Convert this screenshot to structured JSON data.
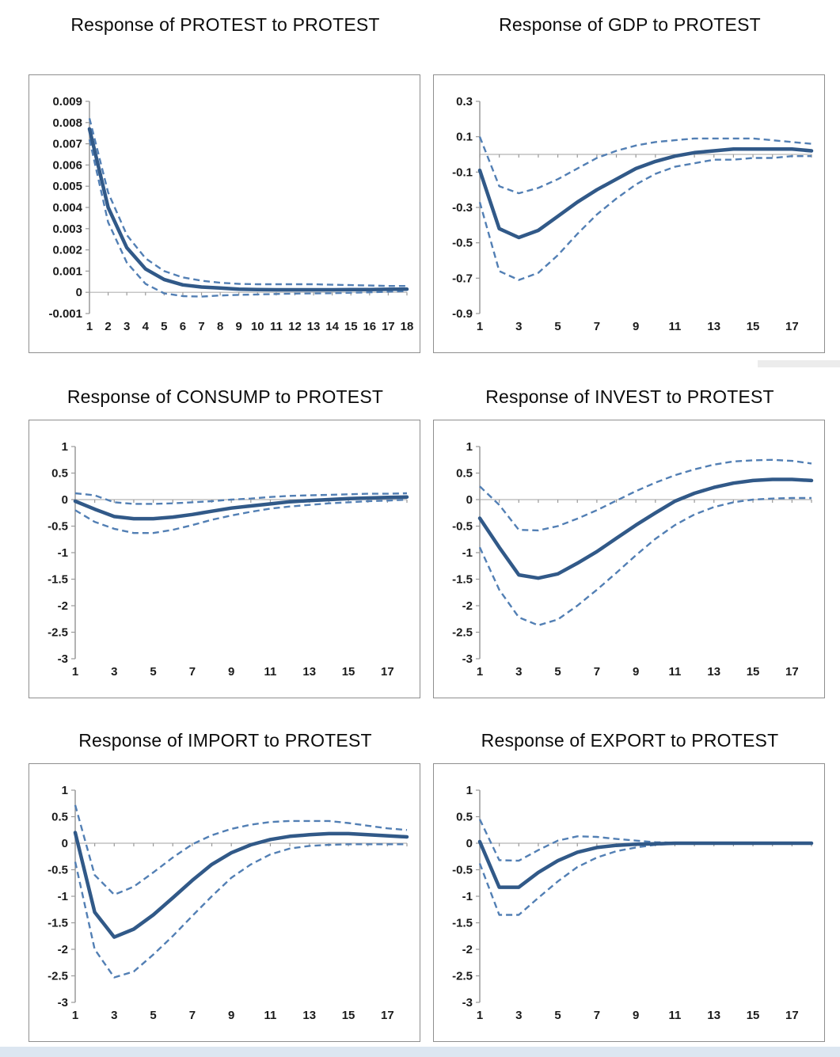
{
  "page": {
    "bottom_strip_color": "#dce6f1",
    "solid_line_color": "#315988",
    "dashed_line_color": "#527fb4",
    "axis_color": "#9a9a9a"
  },
  "chart_data": [
    {
      "type": "line",
      "title": "Response of PROTEST to PROTEST",
      "x": [
        1,
        2,
        3,
        4,
        5,
        6,
        7,
        8,
        9,
        10,
        11,
        12,
        13,
        14,
        15,
        16,
        17,
        18
      ],
      "xticks": [
        1,
        2,
        3,
        4,
        5,
        6,
        7,
        8,
        9,
        10,
        11,
        12,
        13,
        14,
        15,
        16,
        17,
        18
      ],
      "yticks": [
        "0.009",
        "0.008",
        "0.007",
        "0.006",
        "0.005",
        "0.004",
        "0.003",
        "0.002",
        "0.001",
        "0",
        "-0.001"
      ],
      "ylim": [
        -0.001,
        0.009
      ],
      "grid": "off",
      "legend": "none",
      "series": [
        {
          "name": "upper-band",
          "style": "dashed",
          "values": [
            0.0082,
            0.0047,
            0.0027,
            0.0016,
            0.001,
            0.0007,
            0.00055,
            0.00045,
            0.0004,
            0.00038,
            0.00038,
            0.00038,
            0.00038,
            0.00036,
            0.00034,
            0.00032,
            0.0003,
            0.0003
          ]
        },
        {
          "name": "response",
          "style": "solid",
          "values": [
            0.0077,
            0.004,
            0.0021,
            0.0011,
            0.0006,
            0.00035,
            0.00025,
            0.0002,
            0.00015,
            0.00013,
            0.00012,
            0.00012,
            0.00012,
            0.00012,
            0.00013,
            0.00013,
            0.00014,
            0.00015
          ]
        },
        {
          "name": "lower-band",
          "style": "dashed",
          "values": [
            0.0072,
            0.0033,
            0.0014,
            0.0004,
            -5e-05,
            -0.00018,
            -0.0002,
            -0.00015,
            -0.00012,
            -0.0001,
            -8e-05,
            -6e-05,
            -5e-05,
            -4e-05,
            -2e-05,
            0,
            3e-05,
            6e-05
          ]
        }
      ]
    },
    {
      "type": "line",
      "title": "Response of GDP to PROTEST",
      "x": [
        1,
        2,
        3,
        4,
        5,
        6,
        7,
        8,
        9,
        10,
        11,
        12,
        13,
        14,
        15,
        16,
        17,
        18
      ],
      "xticks": [
        1,
        3,
        5,
        7,
        9,
        11,
        13,
        15,
        17
      ],
      "yticks": [
        "0.3",
        "0.1",
        "-0.1",
        "-0.3",
        "-0.5",
        "-0.7",
        "-0.9"
      ],
      "ylim": [
        -0.9,
        0.3
      ],
      "grid": "off",
      "legend": "none",
      "series": [
        {
          "name": "upper-band",
          "style": "dashed",
          "values": [
            0.1,
            -0.18,
            -0.22,
            -0.19,
            -0.14,
            -0.08,
            -0.02,
            0.02,
            0.05,
            0.07,
            0.08,
            0.09,
            0.09,
            0.09,
            0.09,
            0.08,
            0.07,
            0.06
          ]
        },
        {
          "name": "response",
          "style": "solid",
          "values": [
            -0.09,
            -0.42,
            -0.47,
            -0.43,
            -0.35,
            -0.27,
            -0.2,
            -0.14,
            -0.08,
            -0.04,
            -0.01,
            0.01,
            0.02,
            0.03,
            0.03,
            0.03,
            0.03,
            0.02
          ]
        },
        {
          "name": "lower-band",
          "style": "dashed",
          "values": [
            -0.27,
            -0.66,
            -0.71,
            -0.67,
            -0.57,
            -0.45,
            -0.34,
            -0.25,
            -0.17,
            -0.11,
            -0.07,
            -0.05,
            -0.03,
            -0.03,
            -0.02,
            -0.02,
            -0.01,
            -0.01
          ]
        }
      ]
    },
    {
      "type": "line",
      "title": "Response of CONSUMP to PROTEST",
      "x": [
        1,
        2,
        3,
        4,
        5,
        6,
        7,
        8,
        9,
        10,
        11,
        12,
        13,
        14,
        15,
        16,
        17,
        18
      ],
      "xticks": [
        1,
        3,
        5,
        7,
        9,
        11,
        13,
        15,
        17
      ],
      "yticks": [
        "1",
        "0.5",
        "0",
        "-0.5",
        "-1",
        "-1.5",
        "-2",
        "-2.5",
        "-3"
      ],
      "ylim": [
        -3,
        1
      ],
      "grid": "off",
      "legend": "none",
      "series": [
        {
          "name": "upper-band",
          "style": "dashed",
          "values": [
            0.12,
            0.08,
            -0.05,
            -0.08,
            -0.08,
            -0.07,
            -0.05,
            -0.03,
            0,
            0.02,
            0.05,
            0.07,
            0.08,
            0.09,
            0.1,
            0.11,
            0.11,
            0.12
          ]
        },
        {
          "name": "response",
          "style": "solid",
          "values": [
            -0.03,
            -0.18,
            -0.32,
            -0.36,
            -0.36,
            -0.33,
            -0.28,
            -0.22,
            -0.16,
            -0.12,
            -0.08,
            -0.04,
            -0.02,
            0,
            0.02,
            0.03,
            0.04,
            0.05
          ]
        },
        {
          "name": "lower-band",
          "style": "dashed",
          "values": [
            -0.2,
            -0.42,
            -0.55,
            -0.63,
            -0.63,
            -0.57,
            -0.48,
            -0.38,
            -0.3,
            -0.23,
            -0.17,
            -0.13,
            -0.1,
            -0.07,
            -0.05,
            -0.03,
            -0.02,
            0
          ]
        }
      ]
    },
    {
      "type": "line",
      "title": "Response of INVEST to PROTEST",
      "x": [
        1,
        2,
        3,
        4,
        5,
        6,
        7,
        8,
        9,
        10,
        11,
        12,
        13,
        14,
        15,
        16,
        17,
        18
      ],
      "xticks": [
        1,
        3,
        5,
        7,
        9,
        11,
        13,
        15,
        17
      ],
      "yticks": [
        "1",
        "0.5",
        "0",
        "-0.5",
        "-1",
        "-1.5",
        "-2",
        "-2.5",
        "-3"
      ],
      "ylim": [
        -3,
        1
      ],
      "grid": "off",
      "legend": "none",
      "series": [
        {
          "name": "upper-band",
          "style": "dashed",
          "values": [
            0.25,
            -0.1,
            -0.57,
            -0.58,
            -0.5,
            -0.36,
            -0.2,
            -0.02,
            0.16,
            0.32,
            0.46,
            0.57,
            0.66,
            0.72,
            0.74,
            0.75,
            0.73,
            0.68
          ]
        },
        {
          "name": "response",
          "style": "solid",
          "values": [
            -0.35,
            -0.9,
            -1.42,
            -1.48,
            -1.4,
            -1.2,
            -0.98,
            -0.73,
            -0.48,
            -0.25,
            -0.03,
            0.12,
            0.23,
            0.31,
            0.36,
            0.38,
            0.38,
            0.36
          ]
        },
        {
          "name": "lower-band",
          "style": "dashed",
          "values": [
            -0.9,
            -1.7,
            -2.22,
            -2.37,
            -2.26,
            -2,
            -1.7,
            -1.38,
            -1.05,
            -0.74,
            -0.48,
            -0.28,
            -0.14,
            -0.05,
            0,
            0.02,
            0.03,
            0.03
          ]
        }
      ]
    },
    {
      "type": "line",
      "title": "Response of IMPORT to PROTEST",
      "x": [
        1,
        2,
        3,
        4,
        5,
        6,
        7,
        8,
        9,
        10,
        11,
        12,
        13,
        14,
        15,
        16,
        17,
        18
      ],
      "xticks": [
        1,
        3,
        5,
        7,
        9,
        11,
        13,
        15,
        17
      ],
      "yticks": [
        "1",
        "0.5",
        "0",
        "-0.5",
        "-1",
        "-1.5",
        "-2",
        "-2.5",
        "-3"
      ],
      "ylim": [
        -3,
        1
      ],
      "grid": "off",
      "legend": "none",
      "series": [
        {
          "name": "upper-band",
          "style": "dashed",
          "values": [
            0.72,
            -0.6,
            -0.97,
            -0.82,
            -0.55,
            -0.27,
            -0.02,
            0.15,
            0.27,
            0.35,
            0.4,
            0.42,
            0.42,
            0.42,
            0.38,
            0.33,
            0.28,
            0.25
          ]
        },
        {
          "name": "response",
          "style": "solid",
          "values": [
            0.2,
            -1.3,
            -1.77,
            -1.62,
            -1.35,
            -1.03,
            -0.7,
            -0.4,
            -0.18,
            -0.03,
            0.07,
            0.13,
            0.16,
            0.18,
            0.18,
            0.16,
            0.14,
            0.12
          ]
        },
        {
          "name": "lower-band",
          "style": "dashed",
          "values": [
            -0.35,
            -2,
            -2.53,
            -2.42,
            -2.1,
            -1.75,
            -1.37,
            -1,
            -0.65,
            -0.4,
            -0.21,
            -0.1,
            -0.05,
            -0.03,
            -0.02,
            -0.02,
            -0.02,
            -0.02
          ]
        }
      ]
    },
    {
      "type": "line",
      "title": "Response of EXPORT to PROTEST",
      "x": [
        1,
        2,
        3,
        4,
        5,
        6,
        7,
        8,
        9,
        10,
        11,
        12,
        13,
        14,
        15,
        16,
        17,
        18
      ],
      "xticks": [
        1,
        3,
        5,
        7,
        9,
        11,
        13,
        15,
        17
      ],
      "yticks": [
        "1",
        "0.5",
        "0",
        "-0.5",
        "-1",
        "-1.5",
        "-2",
        "-2.5",
        "-3"
      ],
      "ylim": [
        -3,
        1
      ],
      "grid": "off",
      "legend": "none",
      "series": [
        {
          "name": "upper-band",
          "style": "dashed",
          "values": [
            0.45,
            -0.32,
            -0.33,
            -0.13,
            0.05,
            0.13,
            0.12,
            0.08,
            0.05,
            0.02,
            0.01,
            0,
            0,
            0,
            0,
            0,
            0,
            0
          ]
        },
        {
          "name": "response",
          "style": "solid",
          "values": [
            0.03,
            -0.83,
            -0.83,
            -0.55,
            -0.33,
            -0.17,
            -0.08,
            -0.04,
            -0.02,
            -0.01,
            0,
            0,
            0,
            0,
            0,
            0,
            0,
            0
          ]
        },
        {
          "name": "lower-band",
          "style": "dashed",
          "values": [
            -0.38,
            -1.35,
            -1.35,
            -1.03,
            -0.72,
            -0.45,
            -0.27,
            -0.15,
            -0.08,
            -0.03,
            -0.01,
            0,
            0,
            0,
            0,
            0,
            0,
            0
          ]
        }
      ]
    }
  ]
}
